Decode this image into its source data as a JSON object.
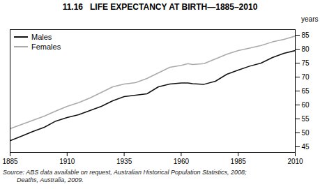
{
  "chart_data": {
    "type": "line",
    "title": "11.16   LIFE EXPECTANCY AT BIRTH—1885–2010",
    "ylabel": "years",
    "source": "Source: ABS data available on request, Australian Historical Population Statistics, 2008;\n        Deaths, Australia, 2009.",
    "x": [
      1885,
      1890,
      1895,
      1900,
      1905,
      1910,
      1915,
      1920,
      1925,
      1930,
      1935,
      1940,
      1945,
      1950,
      1955,
      1960,
      1963,
      1965,
      1970,
      1975,
      1980,
      1985,
      1990,
      1995,
      2000,
      2005,
      2010
    ],
    "series": [
      {
        "name": "Males",
        "color": "#111111",
        "values": [
          47.2,
          48.8,
          50.5,
          52.0,
          54.2,
          55.5,
          56.5,
          58.0,
          59.5,
          61.5,
          63.0,
          63.5,
          64.0,
          66.5,
          67.5,
          67.9,
          67.9,
          67.6,
          67.4,
          68.5,
          71.0,
          72.5,
          73.9,
          75.0,
          77.0,
          78.5,
          79.5
        ]
      },
      {
        "name": "Females",
        "color": "#aaaaaa",
        "values": [
          51.5,
          53.0,
          54.5,
          56.0,
          57.8,
          59.5,
          60.8,
          62.5,
          64.5,
          66.5,
          67.5,
          68.0,
          69.5,
          71.5,
          73.5,
          74.2,
          74.8,
          74.5,
          74.8,
          76.5,
          78.2,
          79.5,
          80.4,
          81.3,
          82.6,
          83.5,
          84.7
        ]
      }
    ],
    "xlim": [
      1885,
      2010
    ],
    "xticks": [
      1885,
      1910,
      1935,
      1960,
      1985,
      2010
    ],
    "ylim": [
      43,
      87
    ],
    "yticks": [
      45,
      50,
      55,
      60,
      65,
      70,
      75,
      80,
      85
    ],
    "legend": "upper left",
    "grid": false
  }
}
